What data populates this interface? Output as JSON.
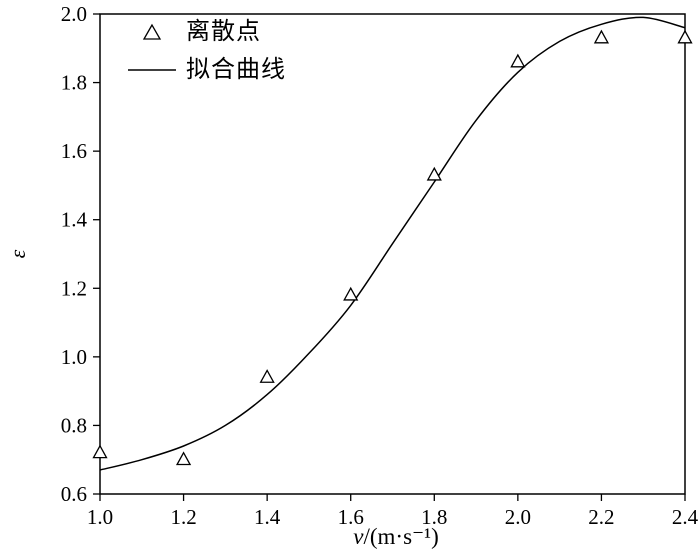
{
  "chart_data": {
    "type": "scatter",
    "title": "",
    "xlabel_var": "v",
    "xlabel_rest": "/(m·s⁻¹)",
    "ylabel": "ε",
    "xlim": [
      1.0,
      2.4
    ],
    "ylim": [
      0.6,
      2.0
    ],
    "grid": false,
    "legend_position": "top-left-inside",
    "x_ticks": [
      "1.0",
      "1.2",
      "1.4",
      "1.6",
      "1.8",
      "2.0",
      "2.2",
      "2.4"
    ],
    "y_ticks": [
      "0.6",
      "0.8",
      "1.0",
      "1.2",
      "1.4",
      "1.6",
      "1.8",
      "2.0"
    ],
    "legend": [
      {
        "label": "离散点",
        "marker": "open-triangle"
      },
      {
        "label": "拟合曲线",
        "marker": "solid-line"
      }
    ],
    "series": [
      {
        "name": "离散点",
        "type": "scatter",
        "marker": "open-triangle",
        "points": [
          [
            1.0,
            0.72
          ],
          [
            1.2,
            0.7
          ],
          [
            1.4,
            0.94
          ],
          [
            1.6,
            1.18
          ],
          [
            1.8,
            1.53
          ],
          [
            2.0,
            1.86
          ],
          [
            2.2,
            1.93
          ],
          [
            2.4,
            1.93
          ]
        ]
      },
      {
        "name": "拟合曲线",
        "type": "line",
        "points": [
          [
            1.0,
            0.67
          ],
          [
            1.1,
            0.7
          ],
          [
            1.2,
            0.74
          ],
          [
            1.3,
            0.8
          ],
          [
            1.4,
            0.89
          ],
          [
            1.5,
            1.01
          ],
          [
            1.6,
            1.15
          ],
          [
            1.7,
            1.33
          ],
          [
            1.8,
            1.51
          ],
          [
            1.9,
            1.69
          ],
          [
            2.0,
            1.83
          ],
          [
            2.1,
            1.92
          ],
          [
            2.2,
            1.97
          ],
          [
            2.3,
            1.99
          ],
          [
            2.4,
            1.96
          ]
        ]
      }
    ],
    "colors": {
      "stroke": "#000000",
      "background": "#ffffff"
    }
  }
}
